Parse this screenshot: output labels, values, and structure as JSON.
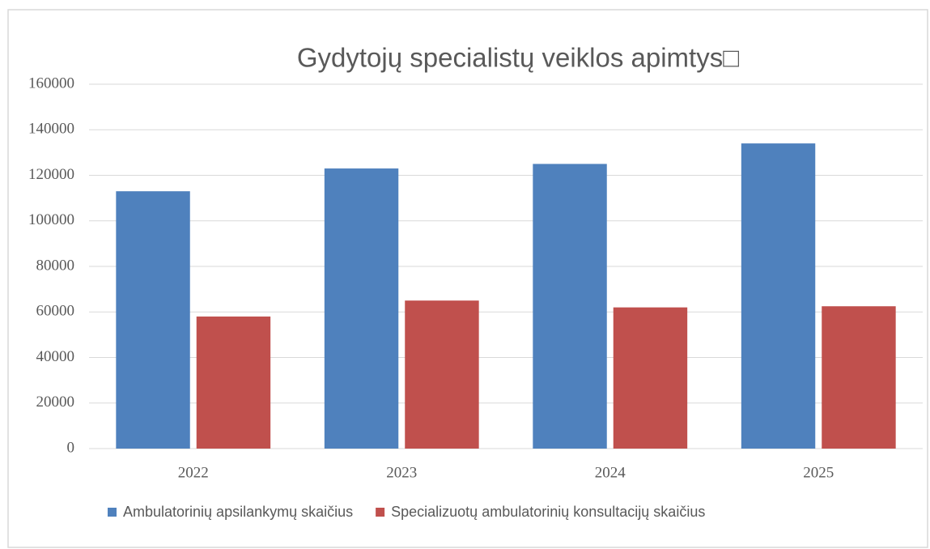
{
  "chart_data": {
    "type": "bar",
    "title": "Gydytojų specialistų veiklos apimtys□",
    "categories": [
      "2022",
      "2023",
      "2024",
      "2025"
    ],
    "series": [
      {
        "name": "Ambulatorinių apsilankymų skaičius",
        "color": "#4f81bd",
        "values": [
          113000,
          123000,
          125000,
          134000
        ]
      },
      {
        "name": "Specializuotų ambulatorinių konsultacijų skaičius",
        "color": "#c0504d",
        "values": [
          58000,
          65000,
          62000,
          62500
        ]
      }
    ],
    "ylim": [
      0,
      160000
    ],
    "yticks": [
      0,
      20000,
      40000,
      60000,
      80000,
      100000,
      120000,
      140000,
      160000
    ],
    "grid": true,
    "legend": "bottom"
  }
}
